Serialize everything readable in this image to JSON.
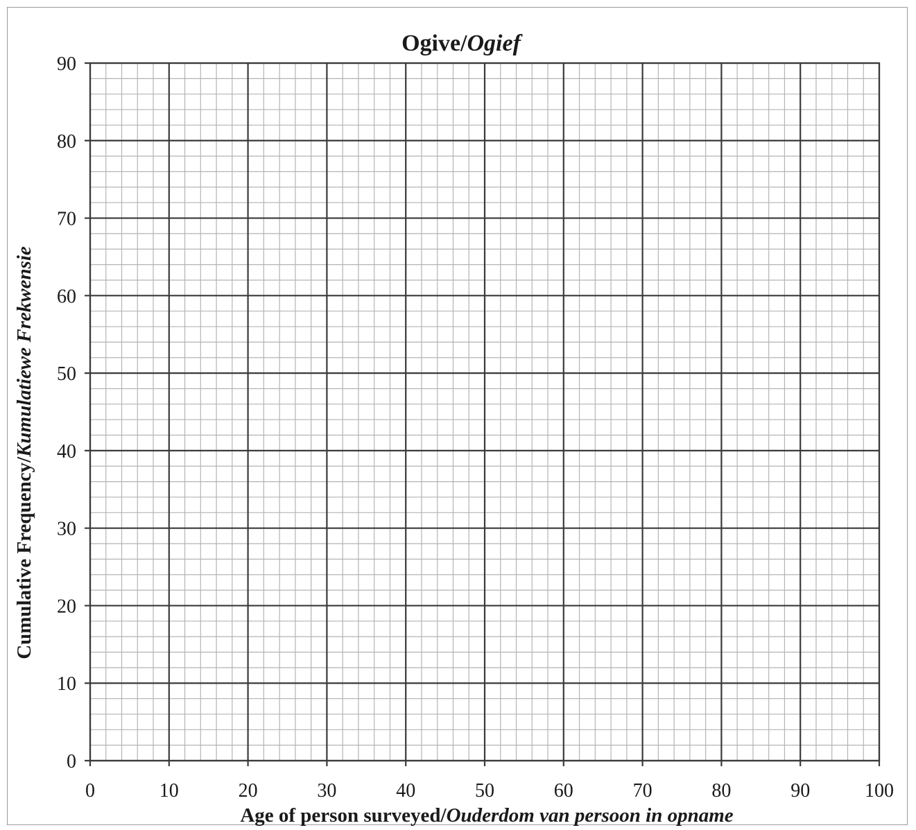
{
  "chart_data": {
    "type": "line",
    "title": {
      "main": "Ogive/",
      "italic": "Ogief"
    },
    "xlabel": {
      "main": "Age of person surveyed/",
      "italic": "Ouderdom  van persoon in opname"
    },
    "ylabel": {
      "main": "Cumulative  Frequency/",
      "italic": "Kumulatiewe  Frekwensie"
    },
    "xlim": [
      0,
      100
    ],
    "ylim": [
      0,
      90
    ],
    "x_ticks": [
      "0",
      "10",
      "20",
      "30",
      "40",
      "50",
      "60",
      "70",
      "80",
      "90",
      "100"
    ],
    "y_ticks": [
      "0",
      "10",
      "20",
      "30",
      "40",
      "50",
      "60",
      "70",
      "80",
      "90"
    ],
    "x_major_step": 10,
    "y_major_step": 10,
    "minor_divisions": 5,
    "grid": true,
    "series": [],
    "colors": {
      "major_grid": "#3a3a3a",
      "minor_grid": "#b4b4b4",
      "text": "#1a1a1a"
    }
  }
}
